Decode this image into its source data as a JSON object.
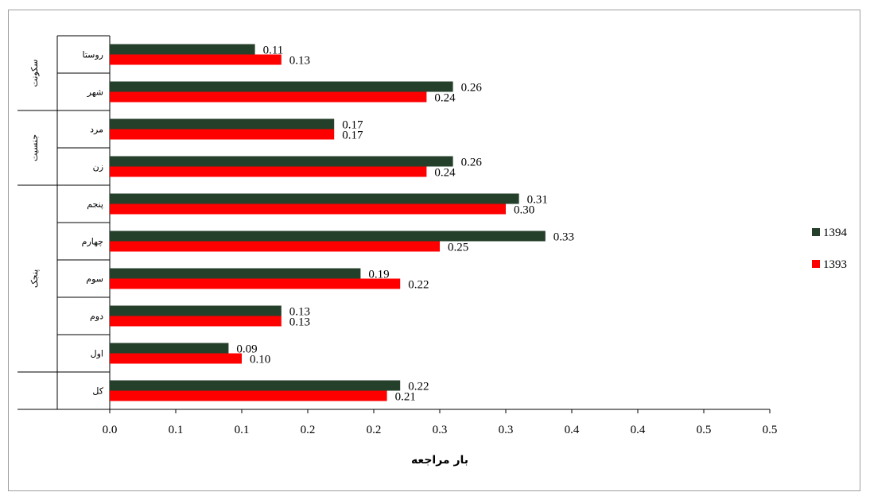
{
  "chart_data": {
    "type": "bar",
    "orientation": "horizontal",
    "xlabel": "بار مراجعه",
    "xlim": [
      0,
      0.5
    ],
    "x_tick_labels": [
      "0.0",
      "0.1",
      "0.1",
      "0.2",
      "0.2",
      "0.3",
      "0.3",
      "0.4",
      "0.4",
      "0.5",
      "0.5"
    ],
    "legend_position": "right",
    "categories": [
      "روستا",
      "شهر",
      "مرد",
      "زن",
      "پنجم",
      "چهارم",
      "سوم",
      "دوم",
      "اول",
      "کل"
    ],
    "groups": [
      {
        "label": "سکونت",
        "categories": [
          "روستا",
          "شهر"
        ]
      },
      {
        "label": "جنسیت",
        "categories": [
          "مرد",
          "زن"
        ]
      },
      {
        "label": "پنجک",
        "categories": [
          "پنجم",
          "چهارم",
          "سوم",
          "دوم",
          "اول"
        ]
      },
      {
        "label": "",
        "categories": [
          "کل"
        ]
      }
    ],
    "series": [
      {
        "name": "1394",
        "color": "#243f2a",
        "values": [
          0.11,
          0.26,
          0.17,
          0.26,
          0.31,
          0.33,
          0.19,
          0.13,
          0.09,
          0.22
        ],
        "labels": [
          "0.11",
          "0.26",
          "0.17",
          "0.26",
          "0.31",
          "0.33",
          "0.19",
          "0.13",
          "0.09",
          "0.22"
        ]
      },
      {
        "name": "1393",
        "color": "#ff0000",
        "values": [
          0.13,
          0.24,
          0.17,
          0.24,
          0.3,
          0.25,
          0.22,
          0.13,
          0.1,
          0.21
        ],
        "labels": [
          "0.13",
          "0.24",
          "0.17",
          "0.24",
          "0.30",
          "0.25",
          "0.22",
          "0.13",
          "0.10",
          "0.21"
        ]
      }
    ]
  }
}
